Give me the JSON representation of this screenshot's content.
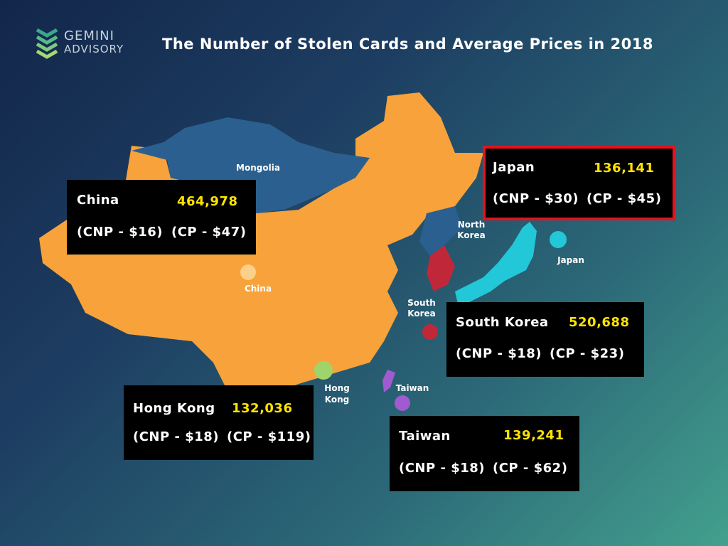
{
  "header": {
    "logo_top": "GEMINI",
    "logo_bottom": "ADVISORY",
    "title": "The Number of Stolen Cards and Average Prices in 2018"
  },
  "map_labels": {
    "mongolia": "Mongolia",
    "north_korea": [
      "North",
      "Korea"
    ],
    "japan": "Japan",
    "china": "China",
    "south_korea": [
      "South",
      "Korea"
    ],
    "hong_kong": [
      "Hong",
      "Kong"
    ],
    "taiwan": "Taiwan"
  },
  "callouts": [
    {
      "country": "China",
      "count": "464,978",
      "cnp": "(CNP - $16)",
      "cp": "(CP - $47)"
    },
    {
      "country": "Japan",
      "count": "136,141",
      "cnp": "(CNP - $30)",
      "cp": "(CP - $45)"
    },
    {
      "country": "South Korea",
      "count": "520,688",
      "cnp": "(CNP - $18)",
      "cp": "(CP - $23)"
    },
    {
      "country": "Hong Kong",
      "count": "132,036",
      "cnp": "(CNP - $18)",
      "cp": "(CP - $119)"
    },
    {
      "country": "Taiwan",
      "count": "139,241",
      "cnp": "(CNP - $18)",
      "cp": "(CP - $62)"
    }
  ]
}
